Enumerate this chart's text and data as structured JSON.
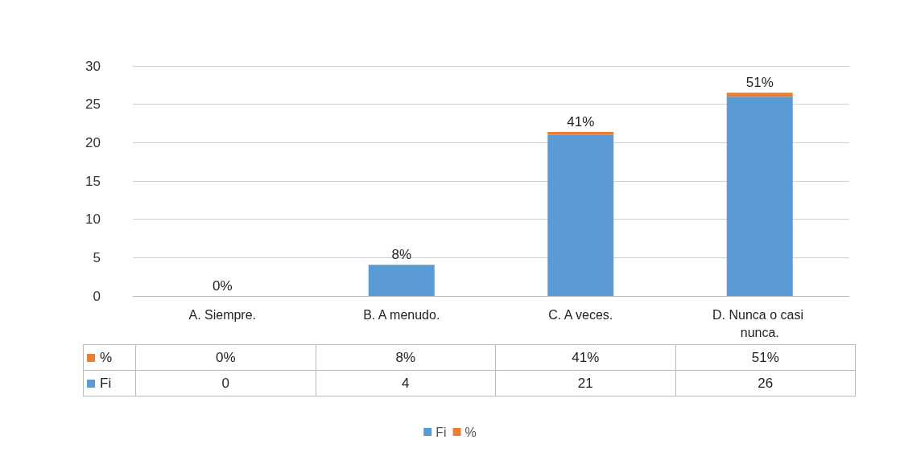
{
  "chart_data": {
    "type": "bar",
    "stacked": true,
    "categories": [
      "A. Siempre.",
      "B. A menudo.",
      "C. A veces.",
      "D. Nunca o casi nunca."
    ],
    "series": [
      {
        "name": "Fi",
        "color": "#5b9bd5",
        "values": [
          0,
          4,
          21,
          26
        ],
        "value_labels": [
          "0",
          "4",
          "21",
          "26"
        ]
      },
      {
        "name": "%",
        "color": "#ed7d31",
        "values": [
          0,
          0.08,
          0.41,
          0.51
        ],
        "value_labels": [
          "0%",
          "8%",
          "41%",
          "51%"
        ]
      }
    ],
    "ylim": [
      0,
      30
    ],
    "yticks": [
      0,
      5,
      10,
      15,
      20,
      25,
      30
    ],
    "grid": "y",
    "legend": "bottom"
  }
}
